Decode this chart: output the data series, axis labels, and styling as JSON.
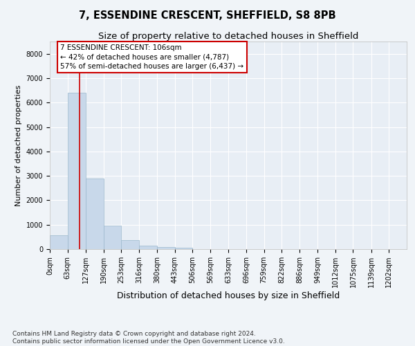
{
  "title": "7, ESSENDINE CRESCENT, SHEFFIELD, S8 8PB",
  "subtitle": "Size of property relative to detached houses in Sheffield",
  "xlabel": "Distribution of detached houses by size in Sheffield",
  "ylabel": "Number of detached properties",
  "bin_edges": [
    0,
    63,
    127,
    190,
    253,
    316,
    380,
    443,
    506,
    569,
    633,
    696,
    759,
    822,
    886,
    949,
    1012,
    1075,
    1139,
    1202,
    1265
  ],
  "bar_heights": [
    580,
    6400,
    2900,
    975,
    360,
    150,
    75,
    50,
    0,
    0,
    0,
    0,
    0,
    0,
    0,
    0,
    0,
    0,
    0,
    0
  ],
  "bar_color": "#c8d8ea",
  "bar_edge_color": "#9ab8cc",
  "property_size": 106,
  "vline_color": "#cc0000",
  "ylim": [
    0,
    8500
  ],
  "yticks": [
    0,
    1000,
    2000,
    3000,
    4000,
    5000,
    6000,
    7000,
    8000
  ],
  "annotation_text": "7 ESSENDINE CRESCENT: 106sqm\n← 42% of detached houses are smaller (4,787)\n57% of semi-detached houses are larger (6,437) →",
  "annotation_box_color": "#ffffff",
  "annotation_box_edge_color": "#cc0000",
  "footer_text": "Contains HM Land Registry data © Crown copyright and database right 2024.\nContains public sector information licensed under the Open Government Licence v3.0.",
  "bg_color": "#f0f4f8",
  "plot_bg_color": "#e8eef5",
  "grid_color": "#ffffff",
  "title_fontsize": 10.5,
  "subtitle_fontsize": 9.5,
  "tick_label_fontsize": 7,
  "ylabel_fontsize": 8,
  "xlabel_fontsize": 9,
  "footer_fontsize": 6.5,
  "annotation_fontsize": 7.5
}
